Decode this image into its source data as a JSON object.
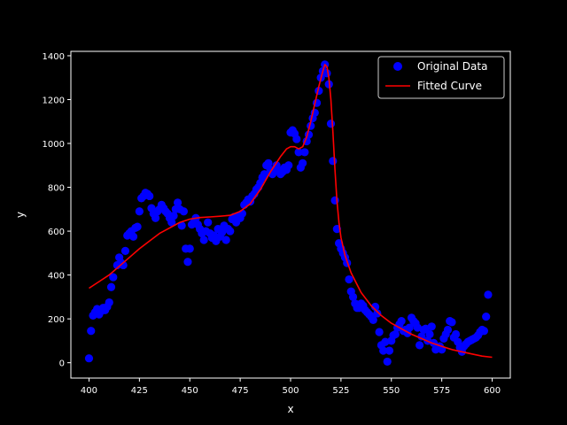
{
  "chart_data": {
    "type": "scatter",
    "title": "",
    "xlabel": "x",
    "ylabel": "y",
    "xlim": [
      391,
      609
    ],
    "ylim": [
      -70,
      1420
    ],
    "xticks": [
      400,
      425,
      450,
      475,
      500,
      525,
      550,
      575,
      600
    ],
    "yticks": [
      0,
      200,
      400,
      600,
      800,
      1000,
      1200,
      1400
    ],
    "grid": false,
    "legend": "top-right",
    "background": "#000000",
    "axis_color": "#ffffff",
    "series": [
      {
        "name": "Original Data",
        "kind": "markers",
        "color": "#0000ff",
        "points": [
          [
            400,
            20
          ],
          [
            401,
            145
          ],
          [
            402,
            215
          ],
          [
            403,
            230
          ],
          [
            404,
            245
          ],
          [
            405,
            220
          ],
          [
            406,
            235
          ],
          [
            407,
            250
          ],
          [
            408,
            240
          ],
          [
            409,
            255
          ],
          [
            410,
            275
          ],
          [
            411,
            345
          ],
          [
            412,
            390
          ],
          [
            414,
            445
          ],
          [
            415,
            480
          ],
          [
            416,
            455
          ],
          [
            417,
            445
          ],
          [
            418,
            510
          ],
          [
            419,
            580
          ],
          [
            420,
            590
          ],
          [
            421,
            600
          ],
          [
            422,
            575
          ],
          [
            423,
            615
          ],
          [
            424,
            620
          ],
          [
            425,
            690
          ],
          [
            426,
            750
          ],
          [
            427,
            760
          ],
          [
            428,
            775
          ],
          [
            429,
            770
          ],
          [
            430,
            760
          ],
          [
            431,
            705
          ],
          [
            432,
            680
          ],
          [
            433,
            660
          ],
          [
            434,
            690
          ],
          [
            435,
            700
          ],
          [
            436,
            720
          ],
          [
            437,
            705
          ],
          [
            438,
            690
          ],
          [
            439,
            680
          ],
          [
            440,
            660
          ],
          [
            441,
            640
          ],
          [
            442,
            670
          ],
          [
            443,
            700
          ],
          [
            444,
            730
          ],
          [
            445,
            700
          ],
          [
            446,
            625
          ],
          [
            447,
            690
          ],
          [
            448,
            520
          ],
          [
            449,
            460
          ],
          [
            450,
            520
          ],
          [
            451,
            630
          ],
          [
            452,
            640
          ],
          [
            453,
            660
          ],
          [
            454,
            630
          ],
          [
            455,
            610
          ],
          [
            456,
            590
          ],
          [
            457,
            560
          ],
          [
            458,
            600
          ],
          [
            459,
            640
          ],
          [
            460,
            590
          ],
          [
            461,
            570
          ],
          [
            462,
            580
          ],
          [
            463,
            555
          ],
          [
            464,
            610
          ],
          [
            465,
            575
          ],
          [
            466,
            595
          ],
          [
            467,
            625
          ],
          [
            468,
            560
          ],
          [
            469,
            610
          ],
          [
            470,
            600
          ],
          [
            471,
            655
          ],
          [
            472,
            665
          ],
          [
            473,
            640
          ],
          [
            474,
            665
          ],
          [
            475,
            660
          ],
          [
            476,
            680
          ],
          [
            477,
            720
          ],
          [
            478,
            730
          ],
          [
            479,
            745
          ],
          [
            480,
            735
          ],
          [
            481,
            760
          ],
          [
            482,
            770
          ],
          [
            483,
            790
          ],
          [
            484,
            800
          ],
          [
            485,
            820
          ],
          [
            486,
            845
          ],
          [
            487,
            860
          ],
          [
            488,
            900
          ],
          [
            489,
            910
          ],
          [
            490,
            880
          ],
          [
            491,
            860
          ],
          [
            492,
            875
          ],
          [
            493,
            900
          ],
          [
            494,
            880
          ],
          [
            495,
            860
          ],
          [
            496,
            870
          ],
          [
            497,
            890
          ],
          [
            498,
            880
          ],
          [
            499,
            900
          ],
          [
            500,
            1050
          ],
          [
            501,
            1060
          ],
          [
            502,
            1045
          ],
          [
            503,
            1020
          ],
          [
            504,
            960
          ],
          [
            505,
            890
          ],
          [
            506,
            910
          ],
          [
            507,
            960
          ],
          [
            508,
            1010
          ],
          [
            509,
            1040
          ],
          [
            510,
            1080
          ],
          [
            511,
            1115
          ],
          [
            512,
            1140
          ],
          [
            513,
            1185
          ],
          [
            514,
            1240
          ],
          [
            515,
            1300
          ],
          [
            516,
            1330
          ],
          [
            517,
            1360
          ],
          [
            518,
            1320
          ],
          [
            519,
            1270
          ],
          [
            520,
            1090
          ],
          [
            521,
            920
          ],
          [
            522,
            740
          ],
          [
            523,
            610
          ],
          [
            524,
            545
          ],
          [
            525,
            520
          ],
          [
            526,
            500
          ],
          [
            527,
            480
          ],
          [
            528,
            455
          ],
          [
            529,
            380
          ],
          [
            530,
            325
          ],
          [
            531,
            300
          ],
          [
            532,
            270
          ],
          [
            533,
            250
          ],
          [
            534,
            250
          ],
          [
            535,
            270
          ],
          [
            536,
            260
          ],
          [
            537,
            240
          ],
          [
            538,
            230
          ],
          [
            539,
            220
          ],
          [
            540,
            210
          ],
          [
            541,
            195
          ],
          [
            542,
            255
          ],
          [
            543,
            225
          ],
          [
            544,
            140
          ],
          [
            545,
            80
          ],
          [
            546,
            55
          ],
          [
            547,
            95
          ],
          [
            548,
            5
          ],
          [
            549,
            55
          ],
          [
            550,
            100
          ],
          [
            551,
            125
          ],
          [
            552,
            130
          ],
          [
            553,
            160
          ],
          [
            554,
            175
          ],
          [
            555,
            190
          ],
          [
            556,
            145
          ],
          [
            557,
            150
          ],
          [
            558,
            135
          ],
          [
            559,
            160
          ],
          [
            560,
            205
          ],
          [
            561,
            190
          ],
          [
            562,
            180
          ],
          [
            563,
            160
          ],
          [
            564,
            80
          ],
          [
            565,
            120
          ],
          [
            566,
            150
          ],
          [
            567,
            155
          ],
          [
            568,
            100
          ],
          [
            569,
            130
          ],
          [
            570,
            165
          ],
          [
            571,
            90
          ],
          [
            572,
            60
          ],
          [
            573,
            65
          ],
          [
            574,
            75
          ],
          [
            575,
            60
          ],
          [
            576,
            110
          ],
          [
            577,
            130
          ],
          [
            578,
            150
          ],
          [
            579,
            190
          ],
          [
            580,
            185
          ],
          [
            581,
            115
          ],
          [
            582,
            130
          ],
          [
            583,
            95
          ],
          [
            584,
            70
          ],
          [
            585,
            50
          ],
          [
            586,
            75
          ],
          [
            587,
            85
          ],
          [
            588,
            95
          ],
          [
            589,
            100
          ],
          [
            590,
            105
          ],
          [
            591,
            110
          ],
          [
            592,
            115
          ],
          [
            593,
            125
          ],
          [
            594,
            140
          ],
          [
            595,
            150
          ],
          [
            596,
            145
          ],
          [
            597,
            210
          ],
          [
            598,
            310
          ]
        ]
      },
      {
        "name": "Fitted Curve",
        "kind": "line",
        "color": "#ff0000",
        "points": [
          [
            400,
            340
          ],
          [
            405,
            370
          ],
          [
            410,
            400
          ],
          [
            415,
            440
          ],
          [
            420,
            480
          ],
          [
            425,
            520
          ],
          [
            430,
            555
          ],
          [
            435,
            590
          ],
          [
            440,
            615
          ],
          [
            445,
            640
          ],
          [
            450,
            655
          ],
          [
            455,
            662
          ],
          [
            460,
            665
          ],
          [
            465,
            668
          ],
          [
            470,
            672
          ],
          [
            475,
            690
          ],
          [
            480,
            725
          ],
          [
            485,
            790
          ],
          [
            490,
            870
          ],
          [
            495,
            940
          ],
          [
            498,
            975
          ],
          [
            500,
            985
          ],
          [
            502,
            985
          ],
          [
            504,
            975
          ],
          [
            506,
            985
          ],
          [
            508,
            1030
          ],
          [
            510,
            1100
          ],
          [
            512,
            1180
          ],
          [
            514,
            1260
          ],
          [
            516,
            1330
          ],
          [
            517,
            1360
          ],
          [
            518,
            1350
          ],
          [
            519,
            1300
          ],
          [
            520,
            1200
          ],
          [
            521,
            1050
          ],
          [
            522,
            880
          ],
          [
            523,
            740
          ],
          [
            524,
            640
          ],
          [
            525,
            570
          ],
          [
            527,
            490
          ],
          [
            530,
            410
          ],
          [
            535,
            320
          ],
          [
            540,
            260
          ],
          [
            545,
            215
          ],
          [
            550,
            180
          ],
          [
            555,
            155
          ],
          [
            560,
            130
          ],
          [
            565,
            110
          ],
          [
            570,
            90
          ],
          [
            575,
            75
          ],
          [
            580,
            60
          ],
          [
            585,
            50
          ],
          [
            590,
            40
          ],
          [
            595,
            30
          ],
          [
            600,
            25
          ]
        ]
      }
    ]
  }
}
